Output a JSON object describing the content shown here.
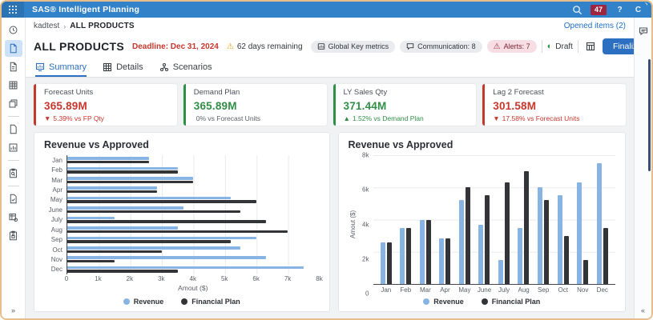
{
  "topbar": {
    "title": "SAS® Intelligent Planning",
    "badge": "47",
    "help": "?",
    "user": "C"
  },
  "breadcrumb": {
    "parent": "kadtest",
    "divider": "›",
    "current": "ALL PRODUCTS",
    "opened_items": "Opened items (2)"
  },
  "header": {
    "title": "ALL PRODUCTS",
    "deadline": "Deadline: Dec 31, 2024",
    "warning_glyph": "⚠",
    "days_remaining": "62 days remaining",
    "global_key_metrics_label": "Global Key metrics",
    "communication_label": "Communication: 8",
    "alerts_label": "Alerts: 7",
    "draft_label": "Draft",
    "draft_glyph": "◐",
    "finalize_label": "Finalize",
    "close_glyph": "✕",
    "more_glyph": "⋮"
  },
  "tabs": [
    {
      "label": "Summary",
      "active": true
    },
    {
      "label": "Details",
      "active": false
    },
    {
      "label": "Scenarios",
      "active": false
    }
  ],
  "kpis": [
    {
      "label": "Forecast Units",
      "value": "365.89M",
      "value_color": "#c9362c",
      "accent": "#c0392b",
      "delta": "5.39% vs FP Qty",
      "delta_dir": "down",
      "delta_color": "#c9362c"
    },
    {
      "label": "Demand Plan",
      "value": "365.89M",
      "value_color": "#2f8f46",
      "accent": "#2f8f46",
      "delta": "0% vs Forecast Units",
      "delta_dir": "none",
      "delta_color": "#5a5f66"
    },
    {
      "label": "LY Sales Qty",
      "value": "371.44M",
      "value_color": "#2f8f46",
      "accent": "#2f8f46",
      "delta": "1.52% vs Demand Plan",
      "delta_dir": "up",
      "delta_color": "#2f8f46"
    },
    {
      "label": "Lag 2 Forecast",
      "value": "301.58M",
      "value_color": "#c9362c",
      "accent": "#c0392b",
      "delta": "17.58% vs Forecast Units",
      "delta_dir": "down",
      "delta_color": "#c9362c"
    }
  ],
  "chart_data": [
    {
      "type": "bar",
      "orientation": "horizontal",
      "title": "Revenue vs Approved",
      "categories": [
        "Jan",
        "Feb",
        "Mar",
        "Apr",
        "May",
        "June",
        "July",
        "Aug",
        "Sep",
        "Oct",
        "Nov",
        "Dec"
      ],
      "series": [
        {
          "name": "Revenue",
          "color": "#88b4e4",
          "values": [
            2600,
            3500,
            4000,
            2850,
            5200,
            3700,
            1500,
            3500,
            6000,
            5500,
            6300,
            7500
          ]
        },
        {
          "name": "Financial Plan",
          "color": "#333438",
          "values": [
            2600,
            3500,
            4000,
            2850,
            6000,
            5500,
            6300,
            7000,
            5200,
            3000,
            1500,
            3500
          ]
        }
      ],
      "xlabel": "Amout ($)",
      "xlim": [
        0,
        8000
      ],
      "xticks": [
        "0",
        "1k",
        "2k",
        "3k",
        "4k",
        "5k",
        "6k",
        "7k",
        "8k"
      ],
      "grid": true,
      "legend_position": "bottom"
    },
    {
      "type": "bar",
      "orientation": "vertical",
      "title": "Revenue vs Approved",
      "categories": [
        "Jan",
        "Feb",
        "Mar",
        "Apr",
        "May",
        "June",
        "July",
        "Aug",
        "Sep",
        "Oct",
        "Nov",
        "Dec"
      ],
      "series": [
        {
          "name": "Revenue",
          "color": "#88b4e4",
          "values": [
            2600,
            3500,
            4000,
            2850,
            5200,
            3700,
            1500,
            3500,
            6000,
            5500,
            6300,
            7500
          ]
        },
        {
          "name": "Financial Plan",
          "color": "#333438",
          "values": [
            2600,
            3500,
            4000,
            2850,
            6000,
            5500,
            6300,
            7000,
            5200,
            3000,
            1500,
            3500
          ]
        }
      ],
      "ylabel": "Amout ($)",
      "ylim": [
        0,
        8000
      ],
      "yticks": [
        "8k",
        "6k",
        "4k",
        "2k",
        "0"
      ],
      "grid": true,
      "legend_position": "bottom"
    }
  ],
  "sidebar": {
    "expand_glyph": "»"
  },
  "right_rail": {
    "collapse_glyph": "«"
  },
  "colors": {
    "topbar_blue": "#3182c8",
    "accent_blue": "#2a6fc0",
    "finalize_blue": "#2d6fc1",
    "badge_red": "#9d2540",
    "status_red": "#c9362c",
    "status_green": "#2f8f46",
    "alert_pill_bg": "#f6dee4",
    "revenue_series": "#88b4e4",
    "financial_plan_series": "#333438"
  }
}
